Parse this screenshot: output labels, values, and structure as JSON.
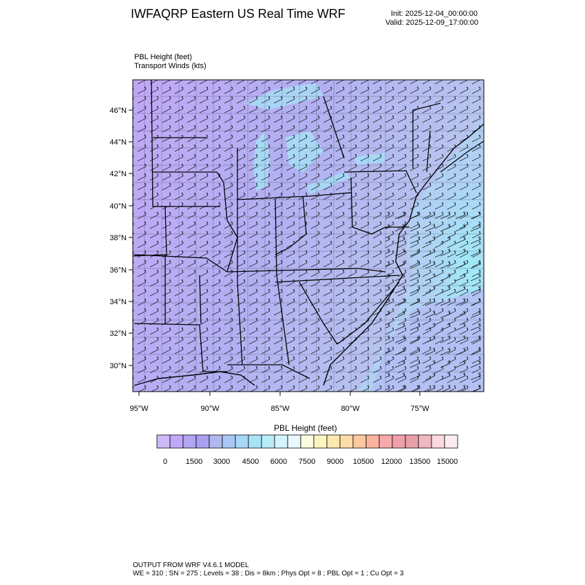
{
  "header": {
    "title": "IWFAQRP Eastern US Real Time WRF",
    "init": "Init: 2025-12-04_00:00:00",
    "valid": "Valid: 2025-12-09_17:00:00"
  },
  "fields": {
    "line1": "PBL Height   (feet)",
    "line2": "Transport Winds   (kts)"
  },
  "map": {
    "lat_labels": [
      "46°N",
      "44°N",
      "42°N",
      "40°N",
      "38°N",
      "36°N",
      "34°N",
      "32°N",
      "30°N"
    ],
    "lon_labels": [
      "95°W",
      "90°W",
      "85°W",
      "80°W",
      "75°W"
    ],
    "colors": {
      "land_west": "#b8a8f4",
      "land_east": "#b4c6ee",
      "ocean": "#a8e6f4",
      "southeast_ocean": "#b8bcf0"
    }
  },
  "colorbar": {
    "title": "PBL Height  (feet)",
    "labels": [
      "0",
      "1500",
      "3000",
      "4500",
      "6000",
      "7500",
      "9000",
      "10500",
      "12000",
      "13500",
      "15000"
    ],
    "colors": [
      "#cdb8f8",
      "#c0a8f8",
      "#b4a4f4",
      "#aaa0f0",
      "#b0b8f0",
      "#a8c8f4",
      "#a8d8f8",
      "#a8e4f8",
      "#b8ecf8",
      "#d4f4fc",
      "#e8f8fc",
      "#fcfce0",
      "#fcf4c0",
      "#fce8b0",
      "#fcdca8",
      "#fcc8a0",
      "#fcb4a0",
      "#f8a8a8",
      "#f0a0a8",
      "#e8a0a8",
      "#f0b8c0",
      "#fcd8e0",
      "#fcecf0"
    ]
  },
  "footer": {
    "line1": "OUTPUT FROM WRF V4.6.1 MODEL",
    "line2": "WE = 310 ; SN = 275 ; Levels = 38 ; Dis = 8km ; Phys Opt = 8 ; PBL Opt = 1 ; Cu Opt = 3"
  }
}
